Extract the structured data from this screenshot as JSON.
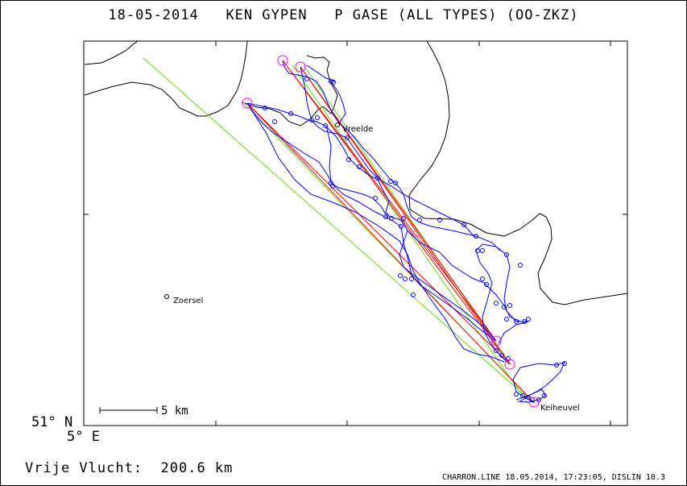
{
  "header": {
    "title": "18-05-2014   KEN GYPEN   P GASE (ALL TYPES) (OO-ZKZ)"
  },
  "map": {
    "places": [
      {
        "name": "Vreelde"
      },
      {
        "name": "Zoersel"
      },
      {
        "name": "Keiheuvel"
      }
    ],
    "scale_bar_label": "5 km",
    "latitude_label": "51° N",
    "longitude_label": "5° E",
    "colors": {
      "track": "#0000ff",
      "leg_red": "#ff0000",
      "leg_green": "#66dd00",
      "turnpoint": "#ff00ff",
      "border": "#000000"
    }
  },
  "footer": {
    "free_flight": "Vrije Vlucht:  200.6 km",
    "credit": "CHARRON.LINE 18.05.2014, 17:23:05, DISLIN 10.3"
  }
}
